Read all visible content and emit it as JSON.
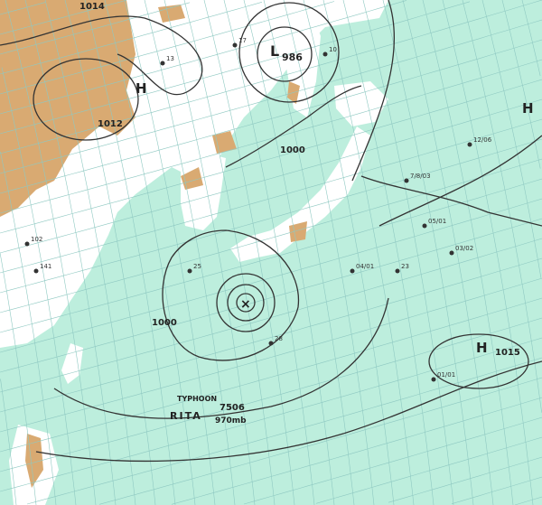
{
  "colors": {
    "sea": "#bdeedd",
    "land": "#ffffff",
    "highland": "#d9aa72",
    "grid": "#8fc9c2",
    "isobar": "#333333"
  },
  "pressure_labels": {
    "top_left": "1014",
    "left": "1012",
    "japan": "1000",
    "typhoon_ring": "1000",
    "low_center": "986",
    "east_high": "1015"
  },
  "centers": {
    "high_left": "H",
    "low_north": "L",
    "high_east": "H",
    "high_southeast": "H"
  },
  "typhoon": {
    "type_label": "TYPHOON",
    "number": "7506",
    "name": "RITA",
    "pressure": "970mb",
    "symbol": "×"
  },
  "station_samples": [
    "13",
    "17",
    "10",
    "25",
    "28",
    "23",
    "05/01",
    "03/02",
    "12/06",
    "01/01",
    "04/01",
    "7/8/03",
    "102",
    "141"
  ]
}
